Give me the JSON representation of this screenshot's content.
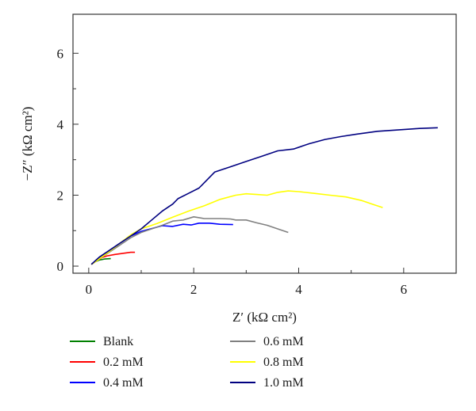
{
  "chart_data": {
    "type": "line",
    "title": "",
    "xlabel": "Z′ (kΩ cm²)",
    "ylabel": "−Z″ (kΩ cm²)",
    "xlim": [
      -0.3,
      7.0
    ],
    "ylim": [
      -0.2,
      7.1
    ],
    "xticks": [
      0,
      2,
      4,
      6
    ],
    "yticks": [
      0,
      2,
      4,
      6
    ],
    "xtick_labels": [
      "0",
      "2",
      "4",
      "6"
    ],
    "ytick_labels": [
      "0",
      "2",
      "4",
      "6"
    ],
    "grid": false,
    "legend_position": "bottom",
    "series": [
      {
        "name": "Blank",
        "color": "#008000",
        "points": [
          [
            0.05,
            0.05
          ],
          [
            0.12,
            0.12
          ],
          [
            0.2,
            0.17
          ],
          [
            0.3,
            0.2
          ],
          [
            0.42,
            0.21
          ]
        ]
      },
      {
        "name": "0.2 mM",
        "color": "#ff0000",
        "points": [
          [
            0.05,
            0.05
          ],
          [
            0.15,
            0.15
          ],
          [
            0.25,
            0.24
          ],
          [
            0.35,
            0.29
          ],
          [
            0.5,
            0.33
          ],
          [
            0.65,
            0.36
          ],
          [
            0.8,
            0.39
          ],
          [
            0.88,
            0.39
          ]
        ]
      },
      {
        "name": "0.4 mM",
        "color": "#0000ff",
        "points": [
          [
            0.05,
            0.05
          ],
          [
            0.2,
            0.25
          ],
          [
            0.4,
            0.45
          ],
          [
            0.6,
            0.65
          ],
          [
            0.8,
            0.85
          ],
          [
            1.0,
            0.98
          ],
          [
            1.2,
            1.06
          ],
          [
            1.4,
            1.14
          ],
          [
            1.6,
            1.12
          ],
          [
            1.8,
            1.18
          ],
          [
            1.95,
            1.16
          ],
          [
            2.1,
            1.21
          ],
          [
            2.3,
            1.21
          ],
          [
            2.5,
            1.18
          ],
          [
            2.75,
            1.17
          ]
        ]
      },
      {
        "name": "0.6 mM",
        "color": "#808080",
        "points": [
          [
            0.05,
            0.05
          ],
          [
            0.2,
            0.2
          ],
          [
            0.4,
            0.4
          ],
          [
            0.6,
            0.6
          ],
          [
            0.8,
            0.8
          ],
          [
            1.0,
            0.95
          ],
          [
            1.2,
            1.05
          ],
          [
            1.4,
            1.15
          ],
          [
            1.6,
            1.27
          ],
          [
            1.8,
            1.3
          ],
          [
            2.0,
            1.39
          ],
          [
            2.2,
            1.34
          ],
          [
            2.5,
            1.34
          ],
          [
            2.7,
            1.33
          ],
          [
            2.8,
            1.3
          ],
          [
            3.0,
            1.3
          ],
          [
            3.2,
            1.22
          ],
          [
            3.4,
            1.15
          ],
          [
            3.6,
            1.05
          ],
          [
            3.8,
            0.95
          ]
        ]
      },
      {
        "name": "0.8 mM",
        "color": "#ffff00",
        "points": [
          [
            0.05,
            0.05
          ],
          [
            0.2,
            0.2
          ],
          [
            0.4,
            0.42
          ],
          [
            0.6,
            0.65
          ],
          [
            0.8,
            0.88
          ],
          [
            1.0,
            1.05
          ],
          [
            1.3,
            1.2
          ],
          [
            1.6,
            1.38
          ],
          [
            1.9,
            1.55
          ],
          [
            2.2,
            1.7
          ],
          [
            2.5,
            1.88
          ],
          [
            2.8,
            2.0
          ],
          [
            3.0,
            2.04
          ],
          [
            3.2,
            2.02
          ],
          [
            3.4,
            2.0
          ],
          [
            3.6,
            2.08
          ],
          [
            3.8,
            2.12
          ],
          [
            4.0,
            2.1
          ],
          [
            4.3,
            2.05
          ],
          [
            4.6,
            2.0
          ],
          [
            4.9,
            1.95
          ],
          [
            5.2,
            1.85
          ],
          [
            5.4,
            1.75
          ],
          [
            5.6,
            1.65
          ]
        ]
      },
      {
        "name": "1.0 mM",
        "color": "#000080",
        "points": [
          [
            0.05,
            0.05
          ],
          [
            0.2,
            0.25
          ],
          [
            0.4,
            0.45
          ],
          [
            0.6,
            0.65
          ],
          [
            0.8,
            0.85
          ],
          [
            1.0,
            1.05
          ],
          [
            1.2,
            1.3
          ],
          [
            1.4,
            1.55
          ],
          [
            1.6,
            1.75
          ],
          [
            1.7,
            1.9
          ],
          [
            1.9,
            2.05
          ],
          [
            2.1,
            2.2
          ],
          [
            2.2,
            2.35
          ],
          [
            2.4,
            2.65
          ],
          [
            2.7,
            2.8
          ],
          [
            3.0,
            2.95
          ],
          [
            3.3,
            3.1
          ],
          [
            3.6,
            3.25
          ],
          [
            3.9,
            3.3
          ],
          [
            4.2,
            3.45
          ],
          [
            4.5,
            3.57
          ],
          [
            4.8,
            3.65
          ],
          [
            5.1,
            3.72
          ],
          [
            5.5,
            3.8
          ],
          [
            6.0,
            3.85
          ],
          [
            6.3,
            3.88
          ],
          [
            6.65,
            3.9
          ]
        ]
      }
    ]
  }
}
